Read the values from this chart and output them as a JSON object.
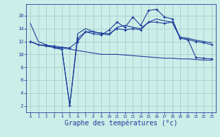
{
  "background_color": "#cceee8",
  "grid_color": "#aacccc",
  "line_color": "#1a3a9a",
  "xlabel": "Graphe des températures (°c)",
  "xlabel_fontsize": 7,
  "xlim": [
    -0.5,
    23.5
  ],
  "ylim": [
    1.0,
    17.8
  ],
  "xticks": [
    0,
    1,
    2,
    3,
    4,
    5,
    6,
    7,
    8,
    9,
    10,
    11,
    12,
    13,
    14,
    15,
    16,
    17,
    18,
    19,
    20,
    21,
    22,
    23
  ],
  "yticks": [
    2,
    4,
    6,
    8,
    10,
    12,
    14,
    16
  ],
  "series": [
    {
      "x": [
        0,
        1,
        2,
        3,
        4,
        5,
        6,
        7,
        8,
        9,
        10,
        11,
        12,
        13,
        14,
        15,
        16,
        17,
        18,
        19,
        20,
        21,
        22,
        23
      ],
      "y": [
        14.8,
        12.0,
        11.5,
        11.0,
        10.8,
        2.0,
        13.2,
        14.0,
        13.5,
        13.2,
        13.0,
        14.2,
        14.5,
        14.2,
        14.0,
        15.0,
        15.5,
        15.2,
        15.0,
        12.7,
        12.5,
        12.2,
        12.0,
        11.8
      ],
      "marker": null
    },
    {
      "x": [
        0,
        1,
        2,
        3,
        4,
        5,
        6,
        7,
        8,
        9,
        10,
        11,
        12,
        13,
        14,
        15,
        16,
        17,
        18,
        19,
        20,
        21,
        22,
        23
      ],
      "y": [
        12.0,
        11.5,
        11.3,
        11.1,
        10.8,
        2.1,
        12.5,
        13.5,
        13.2,
        13.0,
        13.8,
        15.0,
        14.2,
        15.8,
        14.5,
        16.8,
        17.0,
        15.8,
        15.5,
        12.5,
        12.3,
        9.5,
        9.4,
        9.3
      ],
      "marker": "+"
    },
    {
      "x": [
        0,
        1,
        2,
        3,
        4,
        5,
        6,
        7,
        8,
        9,
        10,
        11,
        12,
        13,
        14,
        15,
        16,
        17,
        18,
        19,
        20,
        21,
        22,
        23
      ],
      "y": [
        12.0,
        11.5,
        11.4,
        11.3,
        11.1,
        11.0,
        12.0,
        13.5,
        13.5,
        13.3,
        13.2,
        14.0,
        13.8,
        14.0,
        13.8,
        15.0,
        15.0,
        14.8,
        15.0,
        12.5,
        12.3,
        12.0,
        11.8,
        11.5
      ],
      "marker": "+"
    },
    {
      "x": [
        0,
        1,
        2,
        3,
        4,
        5,
        6,
        7,
        8,
        9,
        10,
        11,
        12,
        13,
        14,
        15,
        16,
        17,
        18,
        19,
        20,
        21,
        22,
        23
      ],
      "y": [
        12.0,
        11.5,
        11.3,
        11.1,
        11.0,
        10.8,
        10.6,
        10.4,
        10.2,
        10.0,
        10.0,
        10.0,
        9.9,
        9.8,
        9.7,
        9.6,
        9.5,
        9.4,
        9.4,
        9.3,
        9.3,
        9.2,
        9.1,
        9.1
      ],
      "marker": null
    }
  ]
}
